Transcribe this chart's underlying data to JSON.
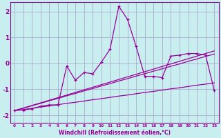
{
  "xlabel": "Windchill (Refroidissement éolien,°C)",
  "bg_color": "#c8eef0",
  "line_color": "#990099",
  "grid_color": "#aaaacc",
  "spine_color": "#880088",
  "x_data": [
    0,
    1,
    2,
    3,
    4,
    5,
    6,
    7,
    8,
    9,
    10,
    11,
    12,
    13,
    14,
    15,
    16,
    17,
    18,
    19,
    20,
    21,
    22,
    23
  ],
  "y_main": [
    -1.8,
    -1.8,
    -1.75,
    -1.65,
    -1.6,
    -1.6,
    -0.1,
    -0.65,
    -0.35,
    -0.4,
    0.05,
    0.55,
    2.2,
    1.7,
    0.65,
    -0.5,
    -0.5,
    -0.55,
    0.28,
    0.32,
    0.38,
    0.38,
    0.32,
    -1.05
  ],
  "y_line1": [
    -1.82,
    -1.72,
    -1.62,
    -1.52,
    -1.42,
    -1.32,
    -1.22,
    -1.12,
    -1.02,
    -0.92,
    -0.82,
    -0.72,
    -0.62,
    -0.52,
    -0.42,
    -0.32,
    -0.22,
    -0.12,
    -0.02,
    0.08,
    0.18,
    0.28,
    0.38,
    0.48
  ],
  "y_line2": [
    -1.82,
    -1.73,
    -1.63,
    -1.54,
    -1.44,
    -1.35,
    -1.25,
    -1.16,
    -1.06,
    -0.97,
    -0.87,
    -0.78,
    -0.68,
    -0.59,
    -0.49,
    -0.4,
    -0.3,
    -0.21,
    -0.11,
    -0.02,
    0.08,
    0.17,
    0.27,
    0.36
  ],
  "y_line3": [
    -1.82,
    -1.78,
    -1.73,
    -1.68,
    -1.64,
    -1.59,
    -1.54,
    -1.5,
    -1.45,
    -1.4,
    -1.36,
    -1.31,
    -1.26,
    -1.22,
    -1.17,
    -1.12,
    -1.08,
    -1.03,
    -0.98,
    -0.94,
    -0.89,
    -0.84,
    -0.8,
    -0.75
  ],
  "ylim": [
    -2.3,
    2.35
  ],
  "yticks": [
    -2,
    -1,
    0,
    1,
    2
  ],
  "xlim": [
    -0.5,
    23.5
  ]
}
